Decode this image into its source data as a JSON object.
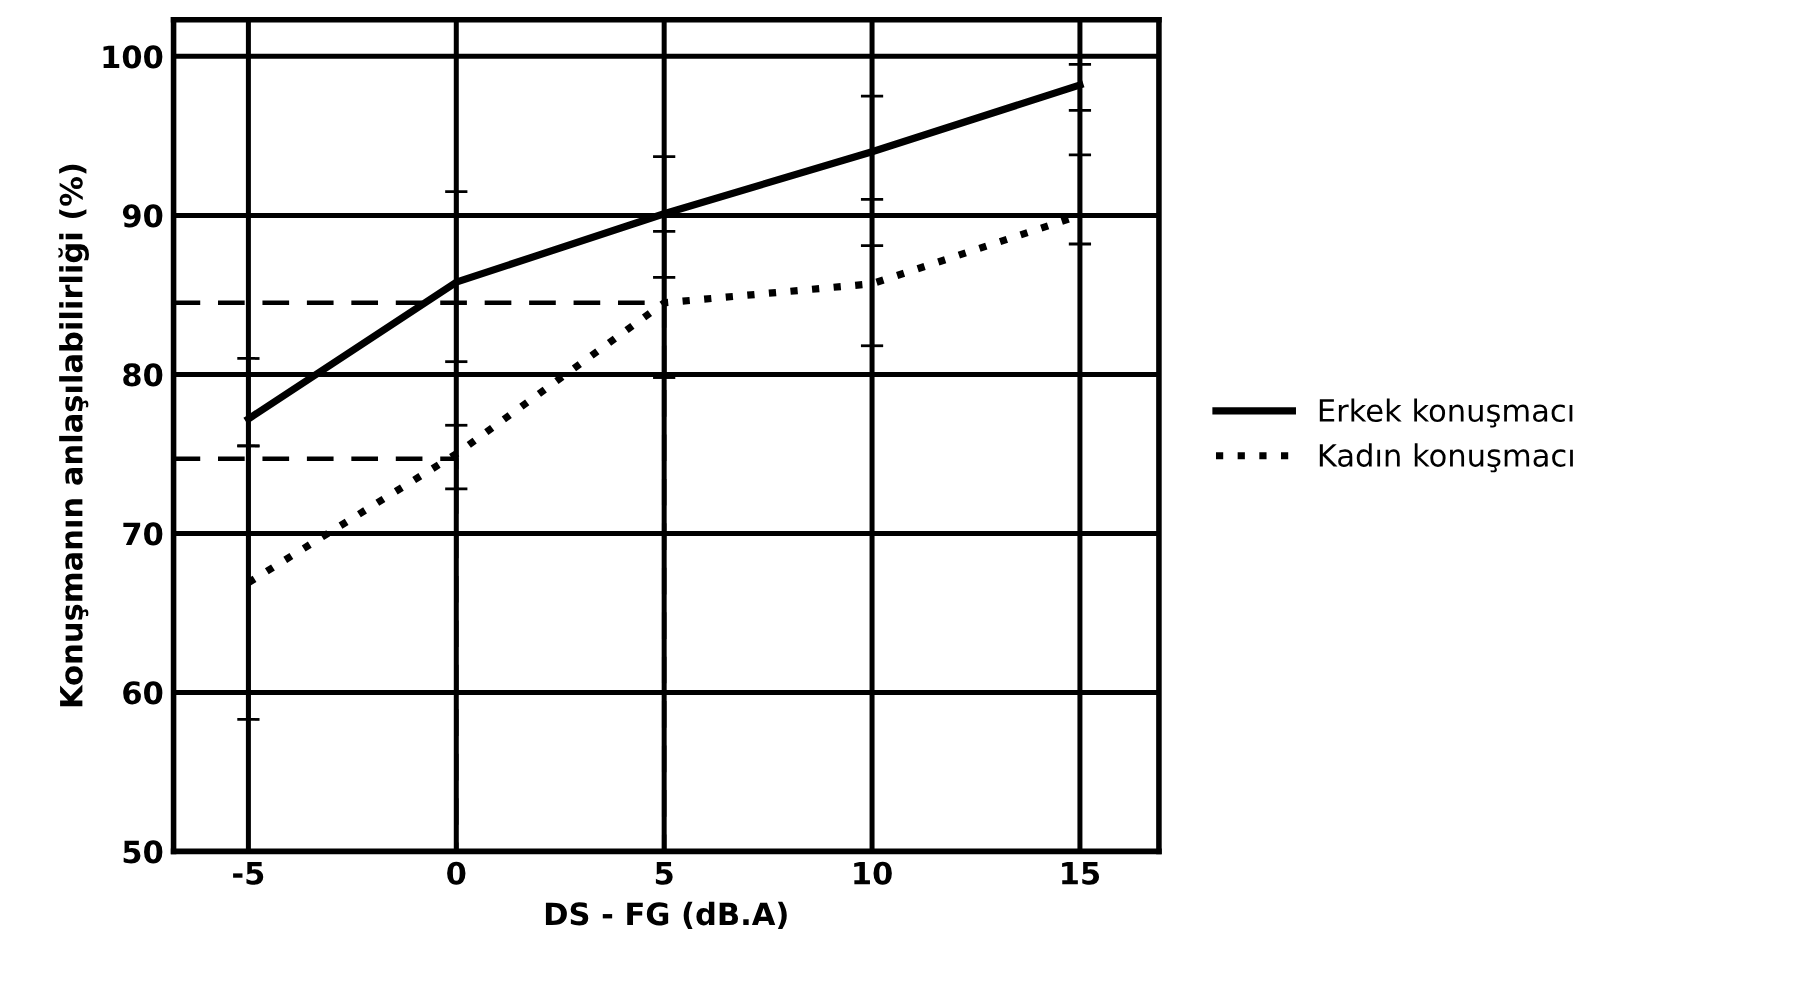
{
  "chart_data": {
    "type": "line",
    "xlabel": "DS - FG (dB.A)",
    "ylabel": "Konuşmanın anlaşılabilirliği (%)",
    "x": [
      -5,
      0,
      5,
      10,
      15
    ],
    "series": [
      {
        "name": "Erkek konuşmacı",
        "color": "#000000",
        "line_style": "solid",
        "values": [
          77.2,
          85.8,
          90.1,
          94,
          98.2
        ],
        "errors": [
          [
            75.5,
            81
          ],
          [
            80.8,
            91.5
          ],
          [
            86.1,
            93.7
          ],
          [
            91,
            97.5
          ],
          [
            96.6,
            99.5
          ]
        ]
      },
      {
        "name": "Kadın konuşmacı",
        "color": "#000000",
        "line_style": "dotted",
        "values": [
          66.9,
          75,
          84.5,
          85.7,
          90
        ],
        "errors": [
          [
            58.3,
            75.5
          ],
          [
            72.8,
            76.8
          ],
          [
            79.8,
            89
          ],
          [
            81.8,
            88.1
          ],
          [
            88.2,
            93.8
          ]
        ]
      },
      {
        "type": "line",
        "color": "#000000",
        "line_style": "dashed",
        "x": [
          -6.8,
          5,
          5
        ],
        "values": [
          84.5,
          84.5,
          50
        ]
      },
      {
        "type": "line",
        "color": "#000000",
        "line_style": "dashed",
        "x": [
          -6.8,
          0,
          0
        ],
        "values": [
          74.7,
          74.7,
          50
        ]
      }
    ],
    "xlim": [
      -6.8,
      16.9
    ],
    "ylim": [
      50,
      102.3
    ],
    "xticks": [
      -5,
      0,
      5,
      10,
      15
    ],
    "yticks": [
      50,
      60,
      70,
      80,
      90,
      100
    ],
    "grid": true,
    "legend": "right",
    "marker": "none"
  }
}
